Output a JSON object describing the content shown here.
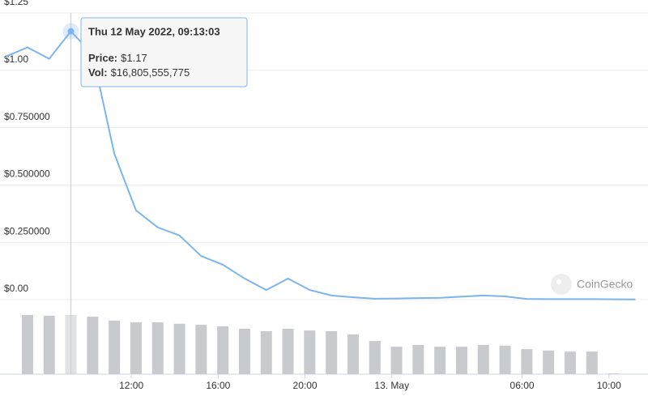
{
  "chart_data": {
    "type": "line",
    "xlim": [
      "2022-05-12T05:57",
      "2022-05-13T11:48"
    ],
    "xticks": [
      {
        "value": "2022-05-12T12:00",
        "label": "12:00"
      },
      {
        "value": "2022-05-12T16:00",
        "label": "16:00"
      },
      {
        "value": "2022-05-12T20:00",
        "label": "20:00"
      },
      {
        "value": "2022-05-13T00:00",
        "label": "13. May"
      },
      {
        "value": "2022-05-13T06:00",
        "label": "06:00"
      },
      {
        "value": "2022-05-13T10:00",
        "label": "10:00"
      }
    ],
    "ylim": [
      0,
      1.25
    ],
    "yticks": [
      {
        "value": 0,
        "label": "$0.00"
      },
      {
        "value": 0.25,
        "label": "$0.250000"
      },
      {
        "value": 0.5,
        "label": "$0.500000"
      },
      {
        "value": 0.75,
        "label": "$0.750000"
      },
      {
        "value": 1,
        "label": "$1.00"
      },
      {
        "value": 1.25,
        "label": "$1.25"
      }
    ],
    "y2lim": [
      0,
      20000000000
    ],
    "grid": true,
    "series": [
      {
        "name": "Price",
        "color": "#7cb5ec",
        "x": [
          "2022-05-12T06:13",
          "2022-05-12T07:13",
          "2022-05-12T08:13",
          "2022-05-12T09:13",
          "2022-05-12T10:13",
          "2022-05-12T11:13",
          "2022-05-12T12:13",
          "2022-05-12T13:13",
          "2022-05-12T14:13",
          "2022-05-12T15:13",
          "2022-05-12T16:13",
          "2022-05-12T17:13",
          "2022-05-12T18:13",
          "2022-05-12T19:13",
          "2022-05-12T20:13",
          "2022-05-12T21:13",
          "2022-05-12T22:13",
          "2022-05-12T23:13",
          "2022-05-13T00:13",
          "2022-05-13T02:13",
          "2022-05-13T04:13",
          "2022-05-13T05:13",
          "2022-05-13T06:13",
          "2022-05-13T07:13",
          "2022-05-13T09:13",
          "2022-05-13T11:13"
        ],
        "values": [
          1.06,
          1.1,
          1.05,
          1.17,
          1.07,
          0.636,
          0.389,
          0.315,
          0.28,
          0.19,
          0.152,
          0.092,
          0.042,
          0.092,
          0.042,
          0.018,
          0.01,
          0.004,
          0.005,
          0.008,
          0.018,
          0.014,
          0.003,
          0.002,
          0.002,
          0.001
        ]
      },
      {
        "name": "Vol",
        "color": "#c9cace",
        "axis": "y2",
        "x": [
          "2022-05-12T07:13",
          "2022-05-12T08:13",
          "2022-05-12T09:13",
          "2022-05-12T10:13",
          "2022-05-12T11:13",
          "2022-05-12T12:13",
          "2022-05-12T13:13",
          "2022-05-12T14:13",
          "2022-05-12T15:13",
          "2022-05-12T16:13",
          "2022-05-12T17:13",
          "2022-05-12T18:13",
          "2022-05-12T19:13",
          "2022-05-12T20:13",
          "2022-05-12T21:13",
          "2022-05-12T22:13",
          "2022-05-12T23:13",
          "2022-05-13T00:13",
          "2022-05-13T01:13",
          "2022-05-13T02:13",
          "2022-05-13T03:13",
          "2022-05-13T04:13",
          "2022-05-13T05:13",
          "2022-05-13T06:13",
          "2022-05-13T07:13",
          "2022-05-13T08:13",
          "2022-05-13T09:13",
          "2022-05-13T10:13"
        ],
        "values": [
          16800000000,
          16600000000,
          16805555775,
          16300000000,
          15200000000,
          14700000000,
          14700000000,
          14300000000,
          14000000000,
          13600000000,
          12900000000,
          12200000000,
          12900000000,
          12400000000,
          12200000000,
          11300000000,
          9400000000,
          7800000000,
          8300000000,
          7800000000,
          7800000000,
          8300000000,
          8100000000,
          7100000000,
          6700000000,
          6400000000,
          6400000000,
          200000000
        ]
      }
    ],
    "tooltip": {
      "title": "Thu 12 May 2022, 09:13:03",
      "price_label": "Price:",
      "price": "$1.17",
      "vol_label": "Vol:",
      "vol": "$16,805,555,775"
    },
    "watermark": "CoinGecko"
  }
}
